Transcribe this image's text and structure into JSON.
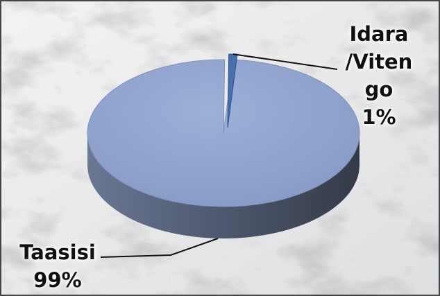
{
  "chart_data": {
    "type": "pie",
    "slices": [
      {
        "label_lines": [
          "Taasisi",
          "99%"
        ],
        "value": 99,
        "color": "#8fa3cf"
      },
      {
        "label_lines": [
          "Idara",
          "/Viten",
          "go",
          "1%"
        ],
        "value": 1,
        "color": "#4a6fae"
      }
    ],
    "three_d": true,
    "legend": "none",
    "grid": false
  },
  "colors": {
    "frame_border": "#444444",
    "background": "marble-grey-white",
    "side_dark": "#343a47",
    "side_light": "#6b7893"
  }
}
